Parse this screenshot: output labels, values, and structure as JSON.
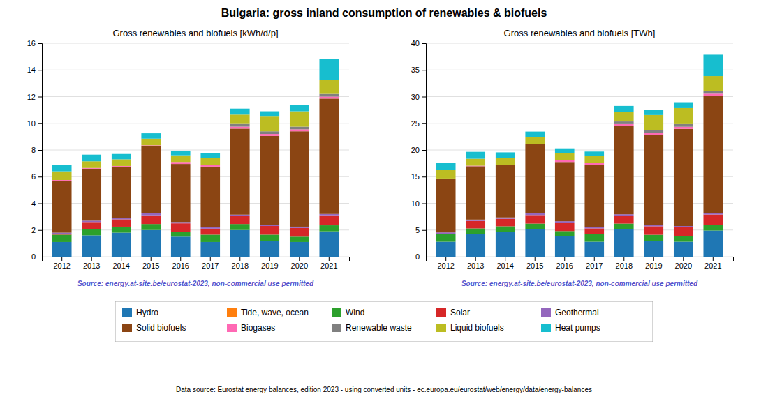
{
  "title": "Bulgaria: gross inland consumption of renewables & biofuels",
  "annotations": [
    "Data source: Eurostat energy balances, edition 2023 - using converted units - ec.europa.eu/eurostat/web/energy/data/energy-balances"
  ],
  "chart_data": [
    {
      "type": "bar",
      "stacked": true,
      "grid": true,
      "legend": "bottom",
      "title": "Gross renewables and biofuels [kWh/d/p]",
      "annotations": [
        {
          "text": "Source: energy.at-site.be/eurostat-2023, non-commercial use permitted",
          "color": "#5555cc"
        }
      ],
      "categories": [
        2012,
        2013,
        2014,
        2015,
        2016,
        2017,
        2018,
        2019,
        2020,
        2021
      ],
      "ylim": [
        0,
        16
      ],
      "yticks": [
        0,
        2,
        4,
        6,
        8,
        10,
        12,
        14,
        16
      ],
      "series": [
        {
          "name": "Hydro",
          "color": "#1f77b4",
          "values": [
            1.1,
            1.6,
            1.8,
            2.0,
            1.5,
            1.1,
            2.0,
            1.2,
            1.1,
            1.9
          ]
        },
        {
          "name": "Tide, wave, ocean",
          "color": "#ff7f0e",
          "values": [
            0.0,
            0.0,
            0.0,
            0.0,
            0.0,
            0.0,
            0.0,
            0.0,
            0.0,
            0.0
          ]
        },
        {
          "name": "Wind",
          "color": "#2ca02c",
          "values": [
            0.55,
            0.45,
            0.45,
            0.45,
            0.35,
            0.55,
            0.45,
            0.45,
            0.4,
            0.45
          ]
        },
        {
          "name": "Solar",
          "color": "#d62728",
          "values": [
            0.05,
            0.55,
            0.55,
            0.65,
            0.65,
            0.45,
            0.6,
            0.65,
            0.65,
            0.75
          ]
        },
        {
          "name": "Geothermal",
          "color": "#9467bd",
          "values": [
            0.1,
            0.1,
            0.1,
            0.15,
            0.1,
            0.1,
            0.1,
            0.1,
            0.1,
            0.1
          ]
        },
        {
          "name": "Solid biofuels",
          "color": "#8B4513",
          "values": [
            3.9,
            3.9,
            3.85,
            5.05,
            4.35,
            4.55,
            6.45,
            6.65,
            7.15,
            8.65
          ]
        },
        {
          "name": "Biogases",
          "color": "#ff69b4",
          "values": [
            0.05,
            0.05,
            0.05,
            0.05,
            0.15,
            0.15,
            0.15,
            0.15,
            0.15,
            0.15
          ]
        },
        {
          "name": "Renewable waste",
          "color": "#808080",
          "values": [
            0.0,
            0.0,
            0.0,
            0.0,
            0.0,
            0.0,
            0.2,
            0.2,
            0.2,
            0.2
          ]
        },
        {
          "name": "Liquid biofuels",
          "color": "#bcbd22",
          "values": [
            0.65,
            0.5,
            0.5,
            0.5,
            0.5,
            0.5,
            0.7,
            1.1,
            1.15,
            1.05
          ]
        },
        {
          "name": "Heat pumps",
          "color": "#17becf",
          "values": [
            0.5,
            0.5,
            0.4,
            0.4,
            0.35,
            0.35,
            0.45,
            0.4,
            0.45,
            1.55
          ]
        }
      ]
    },
    {
      "type": "bar",
      "stacked": true,
      "grid": true,
      "legend": "bottom",
      "title": "Gross renewables and biofuels [TWh]",
      "annotations": [
        {
          "text": "Source: energy.at-site.be/eurostat-2023, non-commercial use permitted",
          "color": "#5555cc"
        }
      ],
      "categories": [
        2012,
        2013,
        2014,
        2015,
        2016,
        2017,
        2018,
        2019,
        2020,
        2021
      ],
      "ylim": [
        0,
        40
      ],
      "yticks": [
        0,
        5,
        10,
        15,
        20,
        25,
        30,
        35,
        40
      ],
      "series": [
        {
          "name": "Hydro",
          "color": "#1f77b4",
          "values": [
            2.8,
            4.2,
            4.6,
            5.1,
            3.9,
            2.8,
            5.1,
            3.0,
            2.8,
            4.9
          ]
        },
        {
          "name": "Tide, wave, ocean",
          "color": "#ff7f0e",
          "values": [
            0.0,
            0.0,
            0.0,
            0.0,
            0.0,
            0.0,
            0.0,
            0.0,
            0.0,
            0.0
          ]
        },
        {
          "name": "Wind",
          "color": "#2ca02c",
          "values": [
            1.4,
            1.1,
            1.1,
            1.1,
            0.9,
            1.4,
            1.1,
            1.1,
            1.0,
            1.1
          ]
        },
        {
          "name": "Solar",
          "color": "#d62728",
          "values": [
            0.1,
            1.4,
            1.4,
            1.6,
            1.6,
            1.1,
            1.5,
            1.6,
            1.7,
            1.9
          ]
        },
        {
          "name": "Geothermal",
          "color": "#9467bd",
          "values": [
            0.25,
            0.25,
            0.25,
            0.35,
            0.25,
            0.25,
            0.25,
            0.25,
            0.25,
            0.25
          ]
        },
        {
          "name": "Solid biofuels",
          "color": "#8B4513",
          "values": [
            10.0,
            10.0,
            9.8,
            12.9,
            11.1,
            11.6,
            16.5,
            16.9,
            18.2,
            22.0
          ]
        },
        {
          "name": "Biogases",
          "color": "#ff69b4",
          "values": [
            0.1,
            0.1,
            0.1,
            0.1,
            0.4,
            0.4,
            0.4,
            0.4,
            0.4,
            0.4
          ]
        },
        {
          "name": "Renewable waste",
          "color": "#808080",
          "values": [
            0.0,
            0.0,
            0.0,
            0.0,
            0.0,
            0.0,
            0.5,
            0.5,
            0.5,
            0.5
          ]
        },
        {
          "name": "Liquid biofuels",
          "color": "#bcbd22",
          "values": [
            1.65,
            1.3,
            1.3,
            1.3,
            1.3,
            1.3,
            1.8,
            2.8,
            3.0,
            2.8
          ]
        },
        {
          "name": "Heat pumps",
          "color": "#17becf",
          "values": [
            1.3,
            1.3,
            1.0,
            1.0,
            0.85,
            0.85,
            1.1,
            1.0,
            1.1,
            4.0
          ]
        }
      ]
    }
  ]
}
